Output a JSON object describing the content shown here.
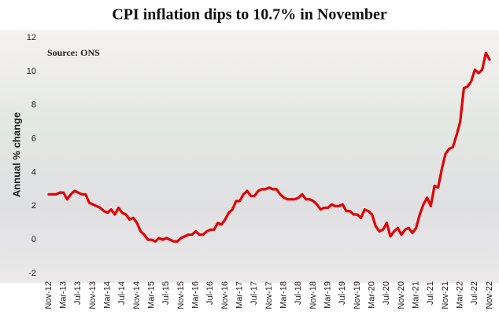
{
  "chart_data": {
    "type": "line",
    "title": "CPI inflation dips to 10.7% in November",
    "annotation": "Source: ONS",
    "y_label": "Annual % change",
    "categories": [
      "Nov-12",
      null,
      null,
      null,
      "Mar-13",
      null,
      null,
      null,
      "Jul-13",
      null,
      null,
      null,
      "Nov-13",
      null,
      null,
      null,
      "Mar-14",
      null,
      null,
      null,
      "Jul-14",
      null,
      null,
      null,
      "Nov-14",
      null,
      null,
      null,
      "Mar-15",
      null,
      null,
      null,
      "Jul-15",
      null,
      null,
      null,
      "Nov-15",
      null,
      null,
      null,
      "Mar-16",
      null,
      null,
      null,
      "Jul-16",
      null,
      null,
      null,
      "Nov-16",
      null,
      null,
      null,
      "Mar-17",
      null,
      null,
      null,
      "Jul-17",
      null,
      null,
      null,
      "Nov-17",
      null,
      null,
      null,
      "Mar-18",
      null,
      null,
      null,
      "Jul-18",
      null,
      null,
      null,
      "Nov-18",
      null,
      null,
      null,
      "Mar-19",
      null,
      null,
      null,
      "Jul-19",
      null,
      null,
      null,
      "Nov-19",
      null,
      null,
      null,
      "Mar-20",
      null,
      null,
      null,
      "Jul-20",
      null,
      null,
      null,
      "Nov-20",
      null,
      null,
      null,
      "Mar-21",
      null,
      null,
      null,
      "Jul-21",
      null,
      null,
      null,
      "Nov-21",
      null,
      null,
      null,
      "Mar-22",
      null,
      null,
      null,
      "Jul-22",
      null,
      null,
      null,
      "Nov-22"
    ],
    "series": [
      {
        "name": "CPI",
        "color": "#e20000",
        "values": [
          2.7,
          2.7,
          2.7,
          2.8,
          2.8,
          2.4,
          2.7,
          2.9,
          2.8,
          2.7,
          2.7,
          2.2,
          2.1,
          2.0,
          1.9,
          1.7,
          1.6,
          1.8,
          1.5,
          1.9,
          1.6,
          1.5,
          1.2,
          1.3,
          1.0,
          0.5,
          0.3,
          0.0,
          0.0,
          -0.1,
          0.1,
          0.0,
          0.1,
          0.0,
          -0.1,
          -0.1,
          0.1,
          0.2,
          0.3,
          0.3,
          0.5,
          0.3,
          0.3,
          0.5,
          0.6,
          0.6,
          1.0,
          0.9,
          1.2,
          1.6,
          1.8,
          2.3,
          2.3,
          2.7,
          2.9,
          2.6,
          2.6,
          2.9,
          3.0,
          3.0,
          3.1,
          3.0,
          3.0,
          2.7,
          2.5,
          2.4,
          2.4,
          2.4,
          2.5,
          2.7,
          2.4,
          2.4,
          2.3,
          2.1,
          1.8,
          1.9,
          1.9,
          2.1,
          2.0,
          2.0,
          2.1,
          1.7,
          1.7,
          1.5,
          1.5,
          1.3,
          1.8,
          1.7,
          1.5,
          0.8,
          0.5,
          0.6,
          1.0,
          0.2,
          0.5,
          0.7,
          0.3,
          0.6,
          0.7,
          0.4,
          0.7,
          1.5,
          2.1,
          2.5,
          2.0,
          3.2,
          3.1,
          4.2,
          5.1,
          5.4,
          5.5,
          6.2,
          7.0,
          9.0,
          9.1,
          9.4,
          10.1,
          9.9,
          10.1,
          11.1,
          10.7
        ]
      }
    ],
    "ylim": [
      -2,
      12
    ],
    "yticks": [
      -2,
      0,
      2,
      4,
      6,
      8,
      10,
      12
    ]
  }
}
